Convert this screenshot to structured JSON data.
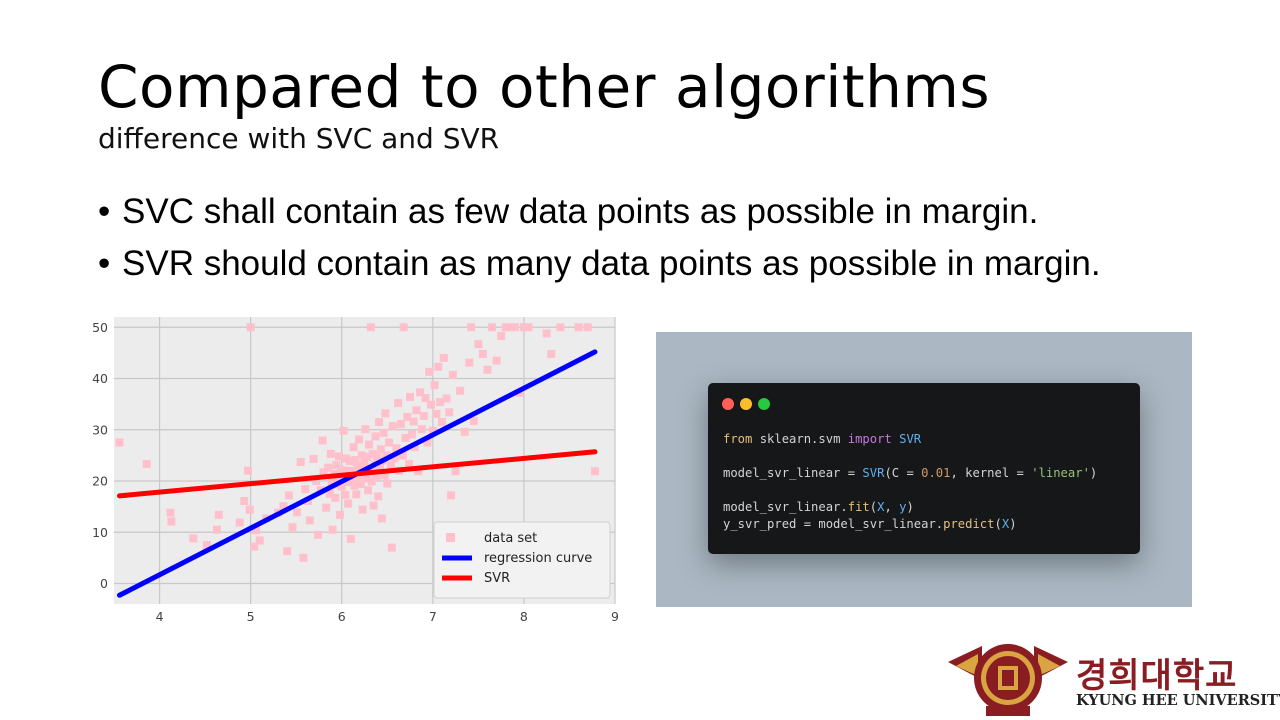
{
  "slide": {
    "title": "Compared to other algorithms",
    "subtitle": "difference with SVC and SVR",
    "bullets": [
      "SVC shall contain as few data points as possible in margin.",
      "SVR should contain as many data points as possible in margin."
    ]
  },
  "code": {
    "lines": [
      "from sklearn.svm import SVR",
      "",
      "model_svr_linear = SVR(C = 0.01, kernel = 'linear')",
      "",
      "model_svr_linear.fit(X, y)",
      "y_svr_pred = model_svr_linear.predict(X)"
    ],
    "window_dot_colors": [
      "#ff5f56",
      "#ffbd2e",
      "#27c93f"
    ]
  },
  "logo": {
    "korean": "경희대학교",
    "english": "KYUNG HEE UNIVERSITY"
  },
  "colors": {
    "scatter": "#ffc0cb",
    "regression": "#0000ff",
    "svr": "#ff0000",
    "plot_background": "#ececec",
    "code_panel": "#abb8c3",
    "logo_red": "#8a1d22"
  },
  "chart_data": {
    "type": "scatter",
    "xlim": [
      3.5,
      9
    ],
    "ylim": [
      -4,
      52
    ],
    "xticks": [
      4,
      5,
      6,
      7,
      8,
      9
    ],
    "yticks": [
      0,
      10,
      20,
      30,
      40,
      50
    ],
    "grid": true,
    "legend_position": "bottom-right",
    "legend": [
      "data set",
      "regression curve",
      "SVR"
    ],
    "series": [
      {
        "name": "data set",
        "kind": "scatter",
        "points": [
          [
            3.56,
            27.5
          ],
          [
            3.86,
            23.3
          ],
          [
            4.12,
            13.8
          ],
          [
            4.13,
            12.1
          ],
          [
            4.37,
            8.8
          ],
          [
            4.52,
            7.5
          ],
          [
            4.63,
            10.5
          ],
          [
            4.65,
            13.4
          ],
          [
            4.88,
            11.9
          ],
          [
            4.93,
            16.1
          ],
          [
            4.97,
            22.0
          ],
          [
            4.99,
            14.4
          ],
          [
            5.0,
            50.0
          ],
          [
            5.04,
            7.2
          ],
          [
            5.06,
            10.4
          ],
          [
            5.1,
            8.4
          ],
          [
            5.17,
            12.7
          ],
          [
            5.3,
            13.8
          ],
          [
            5.36,
            15.1
          ],
          [
            5.4,
            6.3
          ],
          [
            5.42,
            17.2
          ],
          [
            5.46,
            11.0
          ],
          [
            5.51,
            13.9
          ],
          [
            5.55,
            23.7
          ],
          [
            5.58,
            5.0
          ],
          [
            5.6,
            18.4
          ],
          [
            5.63,
            16.1
          ],
          [
            5.65,
            12.3
          ],
          [
            5.69,
            24.3
          ],
          [
            5.72,
            20.0
          ],
          [
            5.74,
            9.5
          ],
          [
            5.77,
            18.2
          ],
          [
            5.79,
            27.9
          ],
          [
            5.8,
            21.7
          ],
          [
            5.83,
            14.8
          ],
          [
            5.85,
            22.6
          ],
          [
            5.87,
            17.5
          ],
          [
            5.88,
            25.3
          ],
          [
            5.89,
            19.6
          ],
          [
            5.9,
            10.5
          ],
          [
            5.92,
            21.4
          ],
          [
            5.93,
            16.7
          ],
          [
            5.94,
            23.1
          ],
          [
            5.95,
            20.3
          ],
          [
            5.96,
            19.3
          ],
          [
            5.97,
            24.8
          ],
          [
            5.98,
            13.4
          ],
          [
            5.99,
            22.2
          ],
          [
            6.0,
            18.9
          ],
          [
            6.01,
            20.6
          ],
          [
            6.02,
            29.8
          ],
          [
            6.03,
            21.7
          ],
          [
            6.04,
            17.3
          ],
          [
            6.05,
            24.4
          ],
          [
            6.06,
            19.8
          ],
          [
            6.07,
            15.6
          ],
          [
            6.08,
            22.0
          ],
          [
            6.09,
            23.9
          ],
          [
            6.1,
            8.7
          ],
          [
            6.11,
            20.1
          ],
          [
            6.12,
            21.2
          ],
          [
            6.13,
            26.6
          ],
          [
            6.14,
            19.1
          ],
          [
            6.15,
            24.1
          ],
          [
            6.16,
            17.4
          ],
          [
            6.17,
            22.5
          ],
          [
            6.18,
            21.0
          ],
          [
            6.19,
            28.1
          ],
          [
            6.2,
            23.0
          ],
          [
            6.21,
            19.4
          ],
          [
            6.22,
            25.0
          ],
          [
            6.23,
            14.4
          ],
          [
            6.24,
            21.6
          ],
          [
            6.25,
            23.6
          ],
          [
            6.26,
            30.1
          ],
          [
            6.27,
            20.5
          ],
          [
            6.28,
            24.7
          ],
          [
            6.29,
            18.2
          ],
          [
            6.3,
            27.1
          ],
          [
            6.31,
            22.2
          ],
          [
            6.32,
            50.0
          ],
          [
            6.33,
            19.9
          ],
          [
            6.34,
            25.3
          ],
          [
            6.35,
            15.2
          ],
          [
            6.36,
            23.1
          ],
          [
            6.37,
            28.7
          ],
          [
            6.38,
            20.8
          ],
          [
            6.39,
            24.6
          ],
          [
            6.4,
            17.0
          ],
          [
            6.41,
            31.5
          ],
          [
            6.42,
            22.6
          ],
          [
            6.43,
            26.2
          ],
          [
            6.44,
            12.7
          ],
          [
            6.45,
            24.0
          ],
          [
            6.46,
            29.4
          ],
          [
            6.47,
            21.1
          ],
          [
            6.48,
            33.2
          ],
          [
            6.49,
            25.0
          ],
          [
            6.5,
            19.5
          ],
          [
            6.52,
            27.5
          ],
          [
            6.54,
            23.1
          ],
          [
            6.55,
            7.0
          ],
          [
            6.56,
            30.7
          ],
          [
            6.58,
            24.4
          ],
          [
            6.6,
            26.4
          ],
          [
            6.62,
            35.2
          ],
          [
            6.63,
            22.0
          ],
          [
            6.65,
            31.1
          ],
          [
            6.67,
            25.0
          ],
          [
            6.68,
            50.0
          ],
          [
            6.7,
            28.4
          ],
          [
            6.72,
            32.5
          ],
          [
            6.74,
            23.3
          ],
          [
            6.75,
            36.4
          ],
          [
            6.77,
            29.1
          ],
          [
            6.79,
            31.6
          ],
          [
            6.8,
            26.6
          ],
          [
            6.82,
            33.8
          ],
          [
            6.84,
            21.9
          ],
          [
            6.86,
            37.3
          ],
          [
            6.88,
            30.1
          ],
          [
            6.9,
            32.7
          ],
          [
            6.92,
            36.2
          ],
          [
            6.94,
            27.5
          ],
          [
            6.96,
            41.3
          ],
          [
            6.98,
            34.9
          ],
          [
            7.0,
            29.8
          ],
          [
            7.02,
            38.7
          ],
          [
            7.04,
            33.1
          ],
          [
            7.06,
            42.3
          ],
          [
            7.08,
            35.4
          ],
          [
            7.1,
            31.5
          ],
          [
            7.12,
            44.0
          ],
          [
            7.15,
            36.1
          ],
          [
            7.18,
            33.4
          ],
          [
            7.2,
            17.2
          ],
          [
            7.22,
            40.7
          ],
          [
            7.25,
            21.9
          ],
          [
            7.3,
            37.6
          ],
          [
            7.35,
            29.6
          ],
          [
            7.4,
            43.1
          ],
          [
            7.42,
            50.0
          ],
          [
            7.45,
            31.7
          ],
          [
            7.5,
            46.7
          ],
          [
            7.55,
            44.8
          ],
          [
            7.6,
            41.7
          ],
          [
            7.65,
            50.0
          ],
          [
            7.7,
            43.5
          ],
          [
            7.75,
            48.3
          ],
          [
            7.8,
            50.0
          ],
          [
            7.85,
            50.0
          ],
          [
            7.9,
            50.0
          ],
          [
            7.95,
            37.2
          ],
          [
            8.0,
            50.0
          ],
          [
            8.05,
            50.0
          ],
          [
            8.25,
            48.8
          ],
          [
            8.3,
            44.8
          ],
          [
            8.4,
            50.0
          ],
          [
            8.6,
            50.0
          ],
          [
            8.7,
            50.0
          ],
          [
            8.78,
            21.9
          ]
        ]
      },
      {
        "name": "regression curve",
        "kind": "line",
        "points": [
          [
            3.56,
            -2.3
          ],
          [
            8.78,
            45.2
          ]
        ]
      },
      {
        "name": "SVR",
        "kind": "line",
        "points": [
          [
            3.56,
            17.1
          ],
          [
            8.78,
            25.7
          ]
        ]
      }
    ]
  }
}
